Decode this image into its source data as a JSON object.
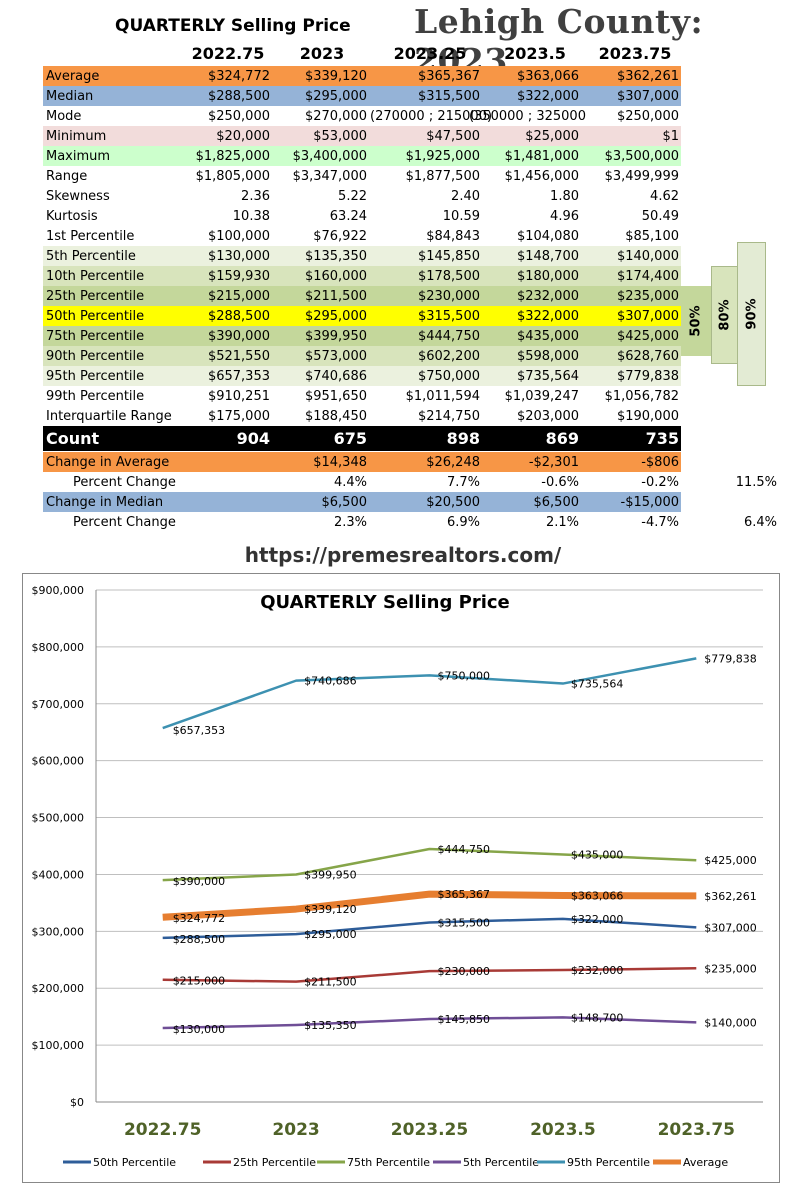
{
  "header": {
    "title": "QUARTERLY Selling Price",
    "county": "Lehigh County: 2023",
    "columns": [
      "2022.75",
      "2023",
      "2023.25",
      "2023.5",
      "2023.75"
    ]
  },
  "table": {
    "rows": [
      {
        "label": "Average",
        "bg": "#f79646",
        "values": [
          "$324,772",
          "$339,120",
          "$365,367",
          "$363,066",
          "$362,261"
        ]
      },
      {
        "label": "Median",
        "bg": "#95b3d7",
        "values": [
          "$288,500",
          "$295,000",
          "$315,500",
          "$322,000",
          "$307,000"
        ]
      },
      {
        "label": "Mode",
        "bg": "#ffffff",
        "values": [
          "$250,000",
          "$270,000",
          "(270000 ; 215000)",
          "(350000 ; 325000",
          "$250,000"
        ]
      },
      {
        "label": "Minimum",
        "bg": "#f2dcdb",
        "values": [
          "$20,000",
          "$53,000",
          "$47,500",
          "$25,000",
          "$1"
        ]
      },
      {
        "label": "Maximum",
        "bg": "#ccffcc",
        "values": [
          "$1,825,000",
          "$3,400,000",
          "$1,925,000",
          "$1,481,000",
          "$3,500,000"
        ]
      },
      {
        "label": "Range",
        "bg": "#ffffff",
        "values": [
          "$1,805,000",
          "$3,347,000",
          "$1,877,500",
          "$1,456,000",
          "$3,499,999"
        ]
      },
      {
        "label": "Skewness",
        "bg": "#ffffff",
        "values": [
          "2.36",
          "5.22",
          "2.40",
          "1.80",
          "4.62"
        ]
      },
      {
        "label": "Kurtosis",
        "bg": "#ffffff",
        "values": [
          "10.38",
          "63.24",
          "10.59",
          "4.96",
          "50.49"
        ]
      },
      {
        "label": "1st Percentile",
        "bg": "#ffffff",
        "values": [
          "$100,000",
          "$76,922",
          "$84,843",
          "$104,080",
          "$85,100"
        ]
      },
      {
        "label": "5th Percentile",
        "bg": "#ebf1de",
        "values": [
          "$130,000",
          "$135,350",
          "$145,850",
          "$148,700",
          "$140,000"
        ]
      },
      {
        "label": "10th Percentile",
        "bg": "#d8e4bc",
        "values": [
          "$159,930",
          "$160,000",
          "$178,500",
          "$180,000",
          "$174,400"
        ]
      },
      {
        "label": "25th Percentile",
        "bg": "#c4d79b",
        "values": [
          "$215,000",
          "$211,500",
          "$230,000",
          "$232,000",
          "$235,000"
        ]
      },
      {
        "label": "50th Percentile",
        "bg": "#ffff00",
        "values": [
          "$288,500",
          "$295,000",
          "$315,500",
          "$322,000",
          "$307,000"
        ]
      },
      {
        "label": "75th Percentile",
        "bg": "#c4d79b",
        "values": [
          "$390,000",
          "$399,950",
          "$444,750",
          "$435,000",
          "$425,000"
        ]
      },
      {
        "label": "90th Percentile",
        "bg": "#d8e4bc",
        "values": [
          "$521,550",
          "$573,000",
          "$602,200",
          "$598,000",
          "$628,760"
        ]
      },
      {
        "label": "95th Percentile",
        "bg": "#ebf1de",
        "values": [
          "$657,353",
          "$740,686",
          "$750,000",
          "$735,564",
          "$779,838"
        ]
      },
      {
        "label": "99th Percentile",
        "bg": "#ffffff",
        "values": [
          "$910,251",
          "$951,650",
          "$1,011,594",
          "$1,039,247",
          "$1,056,782"
        ]
      },
      {
        "label": "Interquartile Range",
        "bg": "#ffffff",
        "values": [
          "$175,000",
          "$188,450",
          "$214,750",
          "$203,000",
          "$190,000"
        ]
      }
    ],
    "count": {
      "label": "Count",
      "values": [
        "904",
        "675",
        "898",
        "869",
        "735"
      ]
    },
    "change_rows": [
      {
        "label": "Change in Average",
        "bg": "#f79646",
        "indent": false,
        "values": [
          "",
          "$14,348",
          "$26,248",
          "-$2,301",
          "-$806"
        ],
        "extra": ""
      },
      {
        "label": "Percent Change",
        "bg": "#ffffff",
        "indent": true,
        "values": [
          "",
          "4.4%",
          "7.7%",
          "-0.6%",
          "-0.2%"
        ],
        "extra": "11.5%"
      },
      {
        "label": "Change in Median",
        "bg": "#95b3d7",
        "indent": false,
        "values": [
          "",
          "$6,500",
          "$20,500",
          "$6,500",
          "-$15,000"
        ],
        "extra": ""
      },
      {
        "label": "Percent Change",
        "bg": "#ffffff",
        "indent": true,
        "values": [
          "",
          "2.3%",
          "6.9%",
          "2.1%",
          "-4.7%"
        ],
        "extra": "6.4%"
      }
    ],
    "bands": [
      "50%",
      "80%",
      "90%"
    ]
  },
  "url": "https://premesrealtors.com/",
  "chart_data": {
    "type": "line",
    "title": "QUARTERLY Selling Price",
    "categories": [
      "2022.75",
      "2023",
      "2023.25",
      "2023.5",
      "2023.75"
    ],
    "ylim": [
      0,
      900000
    ],
    "yticks": [
      "$0",
      "$100,000",
      "$200,000",
      "$300,000",
      "$400,000",
      "$500,000",
      "$600,000",
      "$700,000",
      "$800,000",
      "$900,000"
    ],
    "grid": true,
    "legend_position": "bottom",
    "series": [
      {
        "name": "50th Percentile",
        "color": "#2e5d99",
        "values": [
          288500,
          295000,
          315500,
          322000,
          307000
        ],
        "labels": [
          "$288,500",
          "$295,000",
          "$315,500",
          "$322,000",
          "$307,000"
        ]
      },
      {
        "name": "25th Percentile",
        "color": "#a83a36",
        "values": [
          215000,
          211500,
          230000,
          232000,
          235000
        ],
        "labels": [
          "$215,000",
          "$211,500",
          "$230,000",
          "$232,000",
          "$235,000"
        ]
      },
      {
        "name": "75th Percentile",
        "color": "#86a549",
        "values": [
          390000,
          399950,
          444750,
          435000,
          425000
        ],
        "labels": [
          "$390,000",
          "$399,950",
          "$444,750",
          "$435,000",
          "$425,000"
        ]
      },
      {
        "name": "5th Percentile",
        "color": "#6f4e96",
        "values": [
          130000,
          135350,
          145850,
          148700,
          140000
        ],
        "labels": [
          "$130,000",
          "$135,350",
          "$145,850",
          "$148,700",
          "$140,000"
        ]
      },
      {
        "name": "95th Percentile",
        "color": "#3d91b1",
        "values": [
          657353,
          740686,
          750000,
          735564,
          779838
        ],
        "labels": [
          "$657,353",
          "$740,686",
          "$750,000",
          "$735,564",
          "$779,838"
        ]
      },
      {
        "name": "Average",
        "color": "#e67e30",
        "values": [
          324772,
          339120,
          365367,
          363066,
          362261
        ],
        "labels": [
          "$324,772",
          "$339,120",
          "$365,367",
          "$363,066",
          "$362,261"
        ]
      }
    ]
  }
}
